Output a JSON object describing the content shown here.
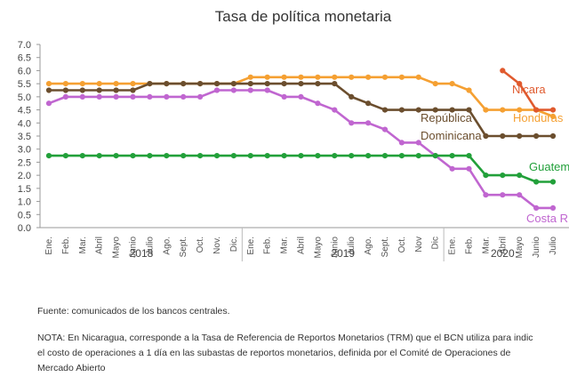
{
  "chart_data": {
    "type": "line",
    "title": "Tasa de política monetaria",
    "xlabel": "",
    "ylabel": "",
    "ylim": [
      0,
      7
    ],
    "yticks": [
      "0.0",
      "0.5",
      "1.0",
      "1.5",
      "2.0",
      "2.5",
      "3.0",
      "3.5",
      "4.0",
      "4.5",
      "5.0",
      "5.5",
      "6.0",
      "6.5",
      "7.0"
    ],
    "categories": [
      "Ene.",
      "Feb.",
      "Mar.",
      "Abril",
      "Mayo",
      "Junio",
      "Julio",
      "Ago.",
      "Sept.",
      "Oct.",
      "Nov.",
      "Dic.",
      "Ene.",
      "Feb.",
      "Mar.",
      "Abril",
      "Mayo",
      "Junio",
      "Julio",
      "Ago.",
      "Sept.",
      "Oct.",
      "Nov",
      "Dic",
      "Ene.",
      "Feb.",
      "Mar.",
      "Abril",
      "Mayo",
      "Junio",
      "Julio"
    ],
    "years": [
      {
        "label": "2018",
        "start": 0,
        "end": 11
      },
      {
        "label": "2019",
        "start": 12,
        "end": 23
      },
      {
        "label": "2020",
        "start": 24,
        "end": 30
      }
    ],
    "grid": false,
    "legend": "inline labels",
    "series": [
      {
        "name": "Honduras",
        "color": "#F5A032",
        "label_lines": [
          "Honduras"
        ],
        "values": [
          5.5,
          5.5,
          5.5,
          5.5,
          5.5,
          5.5,
          5.5,
          5.5,
          5.5,
          5.5,
          5.5,
          5.5,
          5.75,
          5.75,
          5.75,
          5.75,
          5.75,
          5.75,
          5.75,
          5.75,
          5.75,
          5.75,
          5.75,
          5.5,
          5.5,
          5.25,
          4.5,
          4.5,
          4.5,
          4.5,
          4.25
        ]
      },
      {
        "name": "República Dominicana",
        "color": "#6B4E2E",
        "label_lines": [
          "República",
          "Dominicana"
        ],
        "values": [
          5.25,
          5.25,
          5.25,
          5.25,
          5.25,
          5.25,
          5.5,
          5.5,
          5.5,
          5.5,
          5.5,
          5.5,
          5.5,
          5.5,
          5.5,
          5.5,
          5.5,
          5.5,
          5.0,
          4.75,
          4.5,
          4.5,
          4.5,
          4.5,
          4.5,
          4.5,
          3.5,
          3.5,
          3.5,
          3.5,
          3.5
        ]
      },
      {
        "name": "Costa Rica",
        "color": "#C066D0",
        "label_lines": [
          "Costa R"
        ],
        "values": [
          4.75,
          5.0,
          5.0,
          5.0,
          5.0,
          5.0,
          5.0,
          5.0,
          5.0,
          5.0,
          5.25,
          5.25,
          5.25,
          5.25,
          5.0,
          5.0,
          4.75,
          4.5,
          4.0,
          4.0,
          3.75,
          3.25,
          3.25,
          2.75,
          2.25,
          2.25,
          1.25,
          1.25,
          1.25,
          0.75,
          0.75
        ]
      },
      {
        "name": "Guatemala",
        "color": "#22A03A",
        "label_lines": [
          "Guatem"
        ],
        "values": [
          2.75,
          2.75,
          2.75,
          2.75,
          2.75,
          2.75,
          2.75,
          2.75,
          2.75,
          2.75,
          2.75,
          2.75,
          2.75,
          2.75,
          2.75,
          2.75,
          2.75,
          2.75,
          2.75,
          2.75,
          2.75,
          2.75,
          2.75,
          2.75,
          2.75,
          2.75,
          2.0,
          2.0,
          2.0,
          1.75,
          1.75
        ]
      },
      {
        "name": "Nicaragua",
        "color": "#E05A2E",
        "label_lines": [
          "Nicara"
        ],
        "values": [
          null,
          null,
          null,
          null,
          null,
          null,
          null,
          null,
          null,
          null,
          null,
          null,
          null,
          null,
          null,
          null,
          null,
          null,
          null,
          null,
          null,
          null,
          null,
          null,
          null,
          null,
          null,
          6.0,
          5.5,
          4.5,
          4.5
        ]
      }
    ]
  },
  "footer": {
    "source": "Fuente: comunicados de los bancos centrales.",
    "note_line1": "NOTA: En Nicaragua, corresponde a la Tasa de Referencia de Reportos Monetarios (TRM) que el BCN utiliza para indic",
    "note_line2": "el costo de operaciones a 1 día en las subastas de reportos monetarios, definida por el Comité de Operaciones de",
    "note_line3": "Mercado Abierto"
  }
}
